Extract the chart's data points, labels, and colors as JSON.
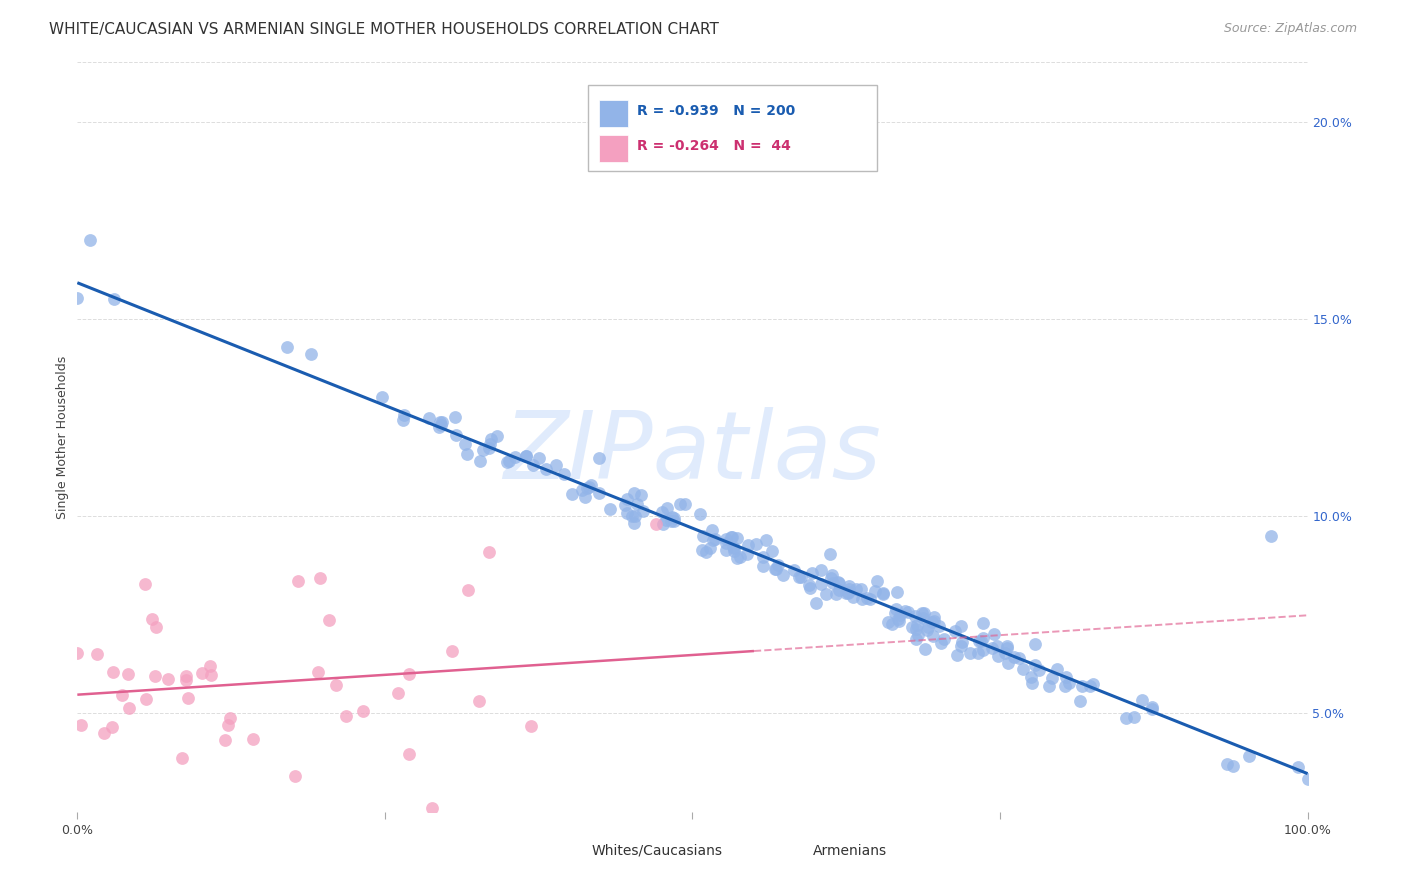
{
  "title": "WHITE/CAUCASIAN VS ARMENIAN SINGLE MOTHER HOUSEHOLDS CORRELATION CHART",
  "source": "Source: ZipAtlas.com",
  "ylabel": "Single Mother Households",
  "yticks": [
    "5.0%",
    "10.0%",
    "15.0%",
    "20.0%"
  ],
  "ytick_vals": [
    0.05,
    0.1,
    0.15,
    0.2
  ],
  "legend_blue_r": "R = -0.939",
  "legend_blue_n": "N = 200",
  "legend_pink_r": "R = -0.264",
  "legend_pink_n": "N =  44",
  "legend_label_blue": "Whites/Caucasians",
  "legend_label_pink": "Armenians",
  "blue_color": "#92B4E8",
  "pink_color": "#F4A0C0",
  "blue_line_color": "#1A5CB0",
  "pink_line_color": "#E06090",
  "watermark_color": "#C8DCFA",
  "watermark": "ZIPatlas",
  "xmin": 0.0,
  "xmax": 1.0,
  "ymin": 0.025,
  "ymax": 0.215,
  "title_fontsize": 11,
  "source_fontsize": 9,
  "axis_label_fontsize": 9,
  "tick_fontsize": 9,
  "background_color": "#FFFFFF",
  "grid_color": "#DDDDDD",
  "tick_color": "#AAAAAA"
}
